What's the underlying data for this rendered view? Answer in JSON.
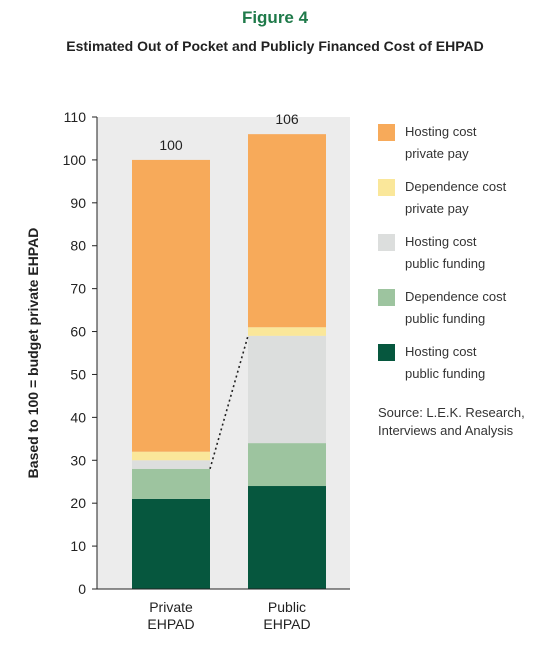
{
  "figure_label": "Figure 4",
  "chart_data": {
    "type": "bar",
    "stacked": true,
    "title": "Estimated Out of Pocket and Publicly Financed Cost of EHPAD",
    "xlabel": "",
    "ylabel": "Based to 100 = budget private EHPAD",
    "ylim": [
      0,
      110
    ],
    "yticks": [
      0,
      10,
      20,
      30,
      40,
      50,
      60,
      70,
      80,
      90,
      100,
      110
    ],
    "categories": [
      [
        "Private",
        "EHPAD"
      ],
      [
        "Public",
        "EHPAD"
      ]
    ],
    "totals": [
      "100",
      "106"
    ],
    "series": [
      {
        "name": [
          "Hosting cost",
          "public funding"
        ],
        "color": "#06573e",
        "values": [
          21,
          24
        ]
      },
      {
        "name": [
          "Dependence cost",
          "public funding"
        ],
        "color": "#9dc49f",
        "values": [
          7,
          10
        ]
      },
      {
        "name": [
          "Hosting cost",
          "public funding"
        ],
        "color": "#dcdedd",
        "values": [
          2,
          25
        ]
      },
      {
        "name": [
          "Dependence cost",
          "private pay"
        ],
        "color": "#fae79a",
        "values": [
          2,
          2
        ]
      },
      {
        "name": [
          "Hosting cost",
          "private pay"
        ],
        "color": "#f7aa5a",
        "values": [
          68,
          45
        ]
      }
    ],
    "connector": {
      "from": {
        "category": 0,
        "value": 28
      },
      "to": {
        "category": 1,
        "value": 59
      }
    },
    "grid": false,
    "legend_position": "right"
  },
  "source_lines": [
    "Source: L.E.K. Research,",
    "Interviews and Analysis"
  ]
}
